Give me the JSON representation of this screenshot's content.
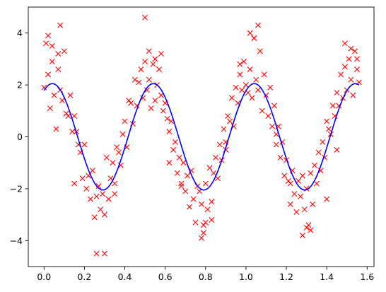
{
  "chart_data": {
    "type": "scatter",
    "title": "",
    "xlabel": "",
    "ylabel": "",
    "xlim": [
      -0.078,
      1.634
    ],
    "ylim": [
      -5.0,
      5.0
    ],
    "xticks": [
      0.0,
      0.2,
      0.4,
      0.6,
      0.8,
      1.0,
      1.2,
      1.4,
      1.6
    ],
    "xtick_labels": [
      "0.0",
      "0.2",
      "0.4",
      "0.6",
      "0.8",
      "1.0",
      "1.2",
      "1.4",
      "1.6"
    ],
    "yticks": [
      -4,
      -2,
      0,
      2,
      4
    ],
    "ytick_labels": [
      "−4",
      "−2",
      "0",
      "2",
      "4"
    ],
    "grid": false,
    "legend": "none",
    "series": [
      {
        "kind": "scatter",
        "marker": "x",
        "color": "#ff0000",
        "x": [
          0.0,
          0.01,
          0.02,
          0.03,
          0.04,
          0.05,
          0.06,
          0.07,
          0.08,
          0.09,
          0.1,
          0.11,
          0.12,
          0.13,
          0.14,
          0.15,
          0.16,
          0.17,
          0.18,
          0.19,
          0.2,
          0.21,
          0.22,
          0.23,
          0.24,
          0.25,
          0.26,
          0.27,
          0.28,
          0.29,
          0.3,
          0.31,
          0.32,
          0.33,
          0.34,
          0.35,
          0.36,
          0.37,
          0.38,
          0.39,
          0.4,
          0.41,
          0.42,
          0.43,
          0.44,
          0.45,
          0.46,
          0.47,
          0.48,
          0.49,
          0.5,
          0.51,
          0.52,
          0.53,
          0.54,
          0.55,
          0.56,
          0.57,
          0.58,
          0.59,
          0.6,
          0.61,
          0.62,
          0.63,
          0.64,
          0.65,
          0.66,
          0.67,
          0.68,
          0.69,
          0.7,
          0.71,
          0.72,
          0.73,
          0.74,
          0.75,
          0.76,
          0.77,
          0.78,
          0.79,
          0.8,
          0.81,
          0.82,
          0.83,
          0.84,
          0.85,
          0.86,
          0.87,
          0.88,
          0.89,
          0.9,
          0.91,
          0.92,
          0.93,
          0.94,
          0.95,
          0.96,
          0.97,
          0.98,
          0.99,
          1.0,
          1.01,
          1.02,
          1.03,
          1.04,
          1.05,
          1.06,
          1.07,
          1.08,
          1.09,
          1.1,
          1.11,
          1.12,
          1.13,
          1.14,
          1.15,
          1.16,
          1.17,
          1.18,
          1.19,
          1.2,
          1.21,
          1.22,
          1.23,
          1.24,
          1.25,
          1.26,
          1.27,
          1.28,
          1.29,
          1.3,
          1.31,
          1.32,
          1.33,
          1.34,
          1.35,
          1.36,
          1.37,
          1.38,
          1.39,
          1.4,
          1.41,
          1.42,
          1.43,
          1.44,
          1.45,
          1.46,
          1.47,
          1.48,
          1.49,
          1.5,
          1.51,
          1.52,
          1.53,
          1.54,
          1.55,
          1.56,
          0.08,
          0.5,
          0.26,
          0.3,
          0.02,
          0.04,
          0.07,
          0.52,
          0.55,
          0.58,
          0.78,
          0.79,
          0.8,
          0.83,
          1.02,
          1.04,
          1.06,
          1.28,
          1.3,
          1.32,
          1.49,
          1.52,
          1.55,
          0.15,
          0.35,
          0.62,
          0.68,
          0.9,
          0.97,
          1.15,
          1.22,
          1.4,
          1.45
        ],
        "y": [
          1.9,
          3.6,
          2.4,
          1.1,
          2.9,
          1.6,
          0.3,
          2.6,
          1.8,
          1.4,
          3.3,
          0.9,
          0.8,
          1.6,
          0.2,
          0.8,
          0.2,
          -0.3,
          -0.6,
          -1.6,
          -0.3,
          -2.0,
          -1.5,
          -2.4,
          -1.3,
          -3.1,
          -2.3,
          -1.9,
          -2.8,
          -2.2,
          -3.0,
          -0.8,
          -2.4,
          -1.6,
          -1.0,
          -1.8,
          -0.4,
          -0.6,
          -1.1,
          0.1,
          0.6,
          -0.4,
          1.4,
          1.3,
          0.5,
          2.2,
          1.2,
          2.1,
          2.6,
          1.5,
          2.9,
          1.8,
          2.2,
          1.1,
          2.8,
          1.4,
          2.0,
          2.6,
          1.6,
          1.0,
          1.3,
          0.7,
          0.2,
          0.6,
          -0.5,
          -0.2,
          -1.4,
          -0.8,
          -1.8,
          -1.0,
          -2.1,
          -1.5,
          -2.7,
          -1.3,
          -2.4,
          -3.3,
          -1.9,
          -2.1,
          -2.6,
          -3.7,
          -1.8,
          -2.8,
          -1.2,
          -2.5,
          -1.4,
          -0.8,
          -1.6,
          -0.3,
          -0.9,
          0.3,
          -0.5,
          0.8,
          0.6,
          1.5,
          0.4,
          1.9,
          1.3,
          2.4,
          1.8,
          2.9,
          2.0,
          1.7,
          2.6,
          1.5,
          3.8,
          2.2,
          1.8,
          3.3,
          1.0,
          2.4,
          1.6,
          0.8,
          1.9,
          0.4,
          1.2,
          -0.3,
          0.4,
          -0.8,
          -0.2,
          -1.5,
          -0.9,
          -1.7,
          -2.6,
          -1.3,
          -2.2,
          -2.9,
          -1.7,
          -2.3,
          -1.5,
          -2.8,
          -2.0,
          -3.4,
          -1.4,
          -2.6,
          -1.1,
          -1.8,
          -0.6,
          -1.3,
          -0.2,
          -0.8,
          0.6,
          0.3,
          0.1,
          1.2,
          0.8,
          1.7,
          1.2,
          2.4,
          1.5,
          2.7,
          1.8,
          3.0,
          2.2,
          1.6,
          3.3,
          2.6,
          2.1,
          4.3,
          4.6,
          -4.5,
          -4.5,
          3.9,
          3.5,
          3.2,
          3.3,
          3.0,
          3.2,
          -3.9,
          -3.4,
          -3.3,
          -3.2,
          4.0,
          3.8,
          4.3,
          -3.8,
          -3.5,
          -3.6,
          3.6,
          3.4,
          3.0,
          -1.8,
          -2.2,
          -1.0,
          -1.9,
          -0.2,
          2.8,
          0.1,
          -1.8,
          -2.4,
          -0.5
        ]
      },
      {
        "kind": "line",
        "color": "#0000ff",
        "function": "2.05 * sin(2*pi*x/0.5 + 1.05)",
        "x_range": [
          0.0,
          1.56
        ]
      }
    ]
  }
}
